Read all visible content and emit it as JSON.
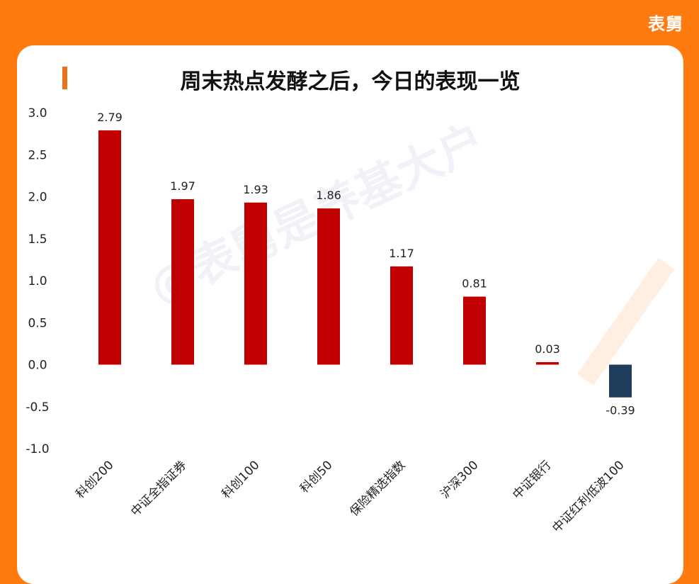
{
  "brand": "表舅",
  "watermark": "@表舅是养基大户",
  "chart_data": {
    "type": "bar",
    "title": "周末热点发酵之后，今日的表现一览",
    "categories": [
      "科创200",
      "中证全指证券",
      "科创100",
      "科创50",
      "保险精选指数",
      "沪深300",
      "中证银行",
      "中证红利低波100"
    ],
    "values": [
      2.79,
      1.97,
      1.93,
      1.86,
      1.17,
      0.81,
      0.03,
      -0.39
    ],
    "data_labels": [
      "2.79",
      "1.97",
      "1.93",
      "1.86",
      "1.17",
      "0.81",
      "0.03",
      "-0.39"
    ],
    "y_ticks": [
      "3.0",
      "2.5",
      "2.0",
      "1.5",
      "1.0",
      "0.5",
      "0.0",
      "-0.5",
      "-1.0"
    ],
    "ylim": [
      -1.0,
      3.0
    ],
    "xlabel": "",
    "ylabel": "",
    "grid": false,
    "colors": {
      "positive": "#C00000",
      "negative": "#1F3D5C"
    }
  }
}
